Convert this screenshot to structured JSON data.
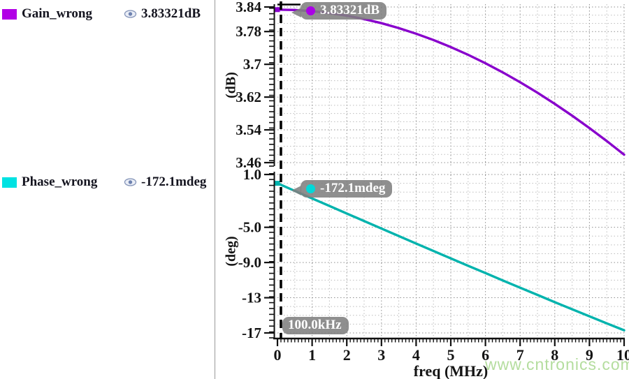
{
  "legend": {
    "items": [
      {
        "label": "Gain_wrong",
        "value": "3.83321dB",
        "color": "#b100e6"
      },
      {
        "label": "Phase_wrong",
        "value": "-172.1mdeg",
        "color": "#00e2e2"
      }
    ]
  },
  "watermark": "www.cntronics.com",
  "chart_data": {
    "type": "line",
    "title": "",
    "x_axis": {
      "label": "freq (MHz)",
      "min": 0,
      "max": 10,
      "tick_values": [
        0,
        1,
        2,
        3,
        4,
        5,
        6,
        7,
        8,
        9,
        10
      ],
      "tick_labels": [
        "0",
        "1",
        "2",
        "3",
        "4",
        "5",
        "6",
        "7",
        "8",
        "9",
        "10"
      ],
      "minor_step": 0.1,
      "grid_step": 0.5
    },
    "cursor": {
      "x": 0.1,
      "label": "100.0kHz"
    },
    "plots": [
      {
        "name": "gain",
        "ylabel": "(dB)",
        "ylim": [
          3.4515,
          3.8468
        ],
        "tick_values": [
          3.84,
          3.78,
          3.7,
          3.62,
          3.54,
          3.46
        ],
        "tick_labels": [
          "3.84",
          "3.78",
          "3.7",
          "3.62",
          "3.54",
          "3.46"
        ],
        "minor_grid_step": 0.02,
        "series": {
          "name": "Gain_wrong",
          "color": "#8800cc",
          "points": [
            [
              0,
              3.8335
            ],
            [
              0.5,
              3.8326
            ],
            [
              1,
              3.8298
            ],
            [
              1.5,
              3.8252
            ],
            [
              2,
              3.8188
            ],
            [
              2.5,
              3.8105
            ],
            [
              3,
              3.8004
            ],
            [
              3.5,
              3.7885
            ],
            [
              4,
              3.7748
            ],
            [
              4.5,
              3.7594
            ],
            [
              5,
              3.7422
            ],
            [
              5.5,
              3.7233
            ],
            [
              6,
              3.7027
            ],
            [
              6.5,
              3.6803
            ],
            [
              7,
              3.6563
            ],
            [
              7.5,
              3.6307
            ],
            [
              8,
              3.6035
            ],
            [
              8.5,
              3.5747
            ],
            [
              9,
              3.5444
            ],
            [
              9.5,
              3.5126
            ],
            [
              10,
              3.4794
            ]
          ]
        },
        "marker": {
          "x": 0.1,
          "y": 3.83321,
          "label": "3.83321dB",
          "color": "#aa00e6"
        }
      },
      {
        "name": "phase",
        "ylabel": "(deg)",
        "ylim": [
          -17.55,
          1.317
        ],
        "tick_values": [
          1.0,
          -5.0,
          -9.0,
          -13,
          -17
        ],
        "tick_labels": [
          "1.0",
          "-5.0",
          "-9.0",
          "-13",
          "-17"
        ],
        "minor_grid_step": 1.0,
        "series": {
          "name": "Phase_wrong",
          "color": "#00b3ad",
          "points": [
            [
              0,
              0.0
            ],
            [
              0.5,
              -0.86
            ],
            [
              1,
              -1.72
            ],
            [
              1.5,
              -2.58
            ],
            [
              2,
              -3.43
            ],
            [
              2.5,
              -4.29
            ],
            [
              3,
              -5.14
            ],
            [
              3.5,
              -5.99
            ],
            [
              4,
              -6.84
            ],
            [
              4.5,
              -7.69
            ],
            [
              5,
              -8.53
            ],
            [
              5.5,
              -9.37
            ],
            [
              6,
              -10.2
            ],
            [
              6.5,
              -11.04
            ],
            [
              7,
              -11.86
            ],
            [
              7.5,
              -12.68
            ],
            [
              8,
              -13.5
            ],
            [
              8.5,
              -14.31
            ],
            [
              9,
              -15.11
            ],
            [
              9.5,
              -15.91
            ],
            [
              10,
              -16.7
            ]
          ]
        },
        "marker": {
          "x": 0.1,
          "y": -0.1721,
          "label": "-172.1mdeg",
          "color": "#00d9d9"
        }
      }
    ]
  }
}
